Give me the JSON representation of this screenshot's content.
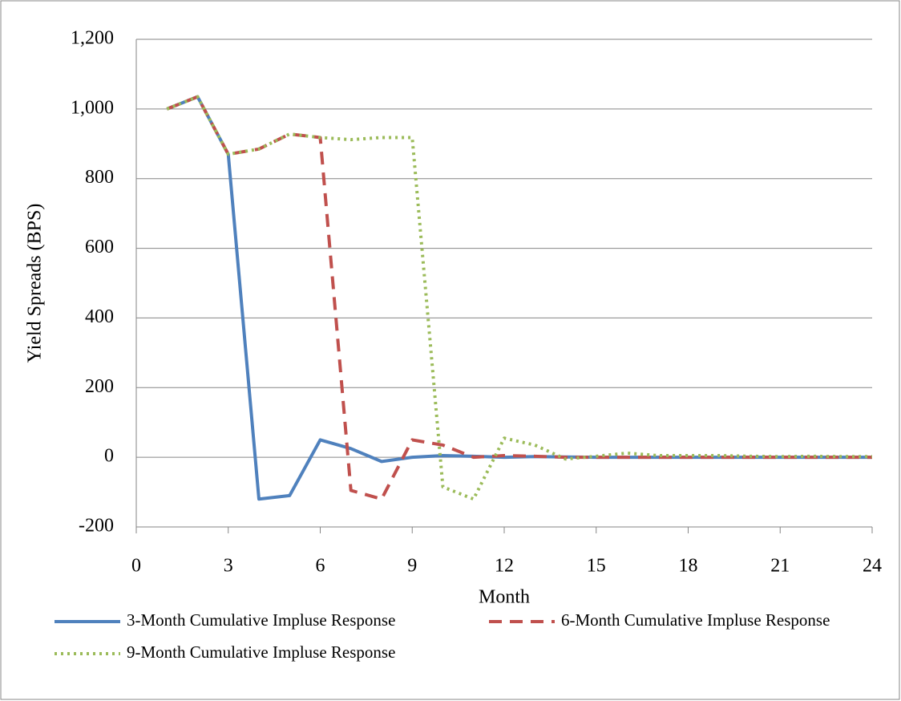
{
  "chart_data": {
    "type": "line",
    "x_label": "Month",
    "y_label": "Yield  Spreads (BPS)",
    "x": [
      1,
      2,
      3,
      4,
      5,
      6,
      7,
      8,
      9,
      10,
      11,
      12,
      13,
      14,
      15,
      16,
      17,
      18,
      19,
      20,
      21,
      22,
      23,
      24
    ],
    "series": [
      {
        "name": "3-Month Cumulative Impluse Response",
        "color": "#4f81bd",
        "dash": "solid",
        "values": [
          1000,
          1035,
          870,
          -120,
          -110,
          50,
          25,
          -12,
          0,
          5,
          3,
          0,
          2,
          1,
          0,
          0,
          0,
          0,
          0,
          0,
          0,
          0,
          0,
          0
        ]
      },
      {
        "name": "6-Month Cumulative Impluse Response",
        "color": "#c0504d",
        "dash": "dashed",
        "values": [
          1000,
          1035,
          870,
          885,
          928,
          918,
          -95,
          -120,
          50,
          35,
          0,
          5,
          3,
          0,
          0,
          0,
          0,
          0,
          0,
          0,
          0,
          0,
          0,
          0
        ]
      },
      {
        "name": "9-Month Cumulative Impluse Response",
        "color": "#9bbb59",
        "dash": "dotted",
        "values": [
          1000,
          1035,
          870,
          885,
          928,
          918,
          912,
          918,
          918,
          -85,
          -120,
          55,
          35,
          -5,
          3,
          12,
          5,
          5,
          5,
          3,
          2,
          3,
          2,
          2
        ]
      }
    ],
    "xlim": [
      0,
      24
    ],
    "xticks": [
      0,
      3,
      6,
      9,
      12,
      15,
      18,
      21,
      24
    ],
    "ylim": [
      -200,
      1200
    ],
    "yticks": [
      -200,
      0,
      200,
      400,
      600,
      800,
      {
        "value": 1000,
        "label": "1,000"
      },
      {
        "value": 1200,
        "label": "1,200"
      }
    ],
    "grid": true,
    "legend": "bottom"
  }
}
